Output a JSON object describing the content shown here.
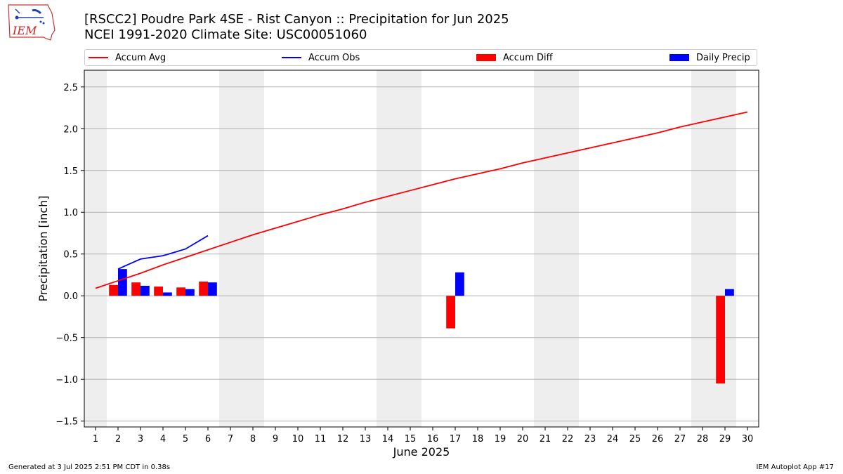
{
  "header": {
    "logo_text": "IEM",
    "title_line1": "[RSCC2] Poudre Park 4SE - Rist Canyon :: Precipitation for Jun 2025",
    "title_line2": "NCEI 1991-2020 Climate Site: USC00051060"
  },
  "footer": {
    "generated": "Generated at 3 Jul 2025 2:51 PM CDT in 0.38s",
    "app": "IEM Autoplot App #17"
  },
  "colors": {
    "accum_avg": "#ff0000",
    "accum_obs": "#0000ff",
    "accum_diff": "#ff0000",
    "daily_precip": "#0000ff",
    "weekend_shade": "#eeeeee",
    "grid": "#b0b0b0"
  },
  "chart_data": {
    "type": "bar",
    "xlabel": "June 2025",
    "ylabel": "Precipitation [inch]",
    "ylim": [
      -1.57,
      2.7
    ],
    "xlim": [
      0.5,
      30.5
    ],
    "grid": "horizontal",
    "legend_placement": "top",
    "x": [
      1,
      2,
      3,
      4,
      5,
      6,
      7,
      8,
      9,
      10,
      11,
      12,
      13,
      14,
      15,
      16,
      17,
      18,
      19,
      20,
      21,
      22,
      23,
      24,
      25,
      26,
      27,
      28,
      29,
      30
    ],
    "yticks": [
      -1.5,
      -1.0,
      -0.5,
      0.0,
      0.5,
      1.0,
      1.5,
      2.0,
      2.5
    ],
    "ytick_labels": [
      "−1.5",
      "−1.0",
      "−0.5",
      "0.0",
      "0.5",
      "1.0",
      "1.5",
      "2.0",
      "2.5"
    ],
    "weekend_days": [
      1,
      7,
      8,
      14,
      15,
      21,
      22,
      28,
      29
    ],
    "series": [
      {
        "name": "Accum Avg",
        "kind": "line",
        "x": [
          1,
          2,
          3,
          4,
          5,
          6,
          7,
          8,
          9,
          10,
          11,
          12,
          13,
          14,
          15,
          16,
          17,
          18,
          19,
          20,
          21,
          22,
          23,
          24,
          25,
          26,
          27,
          28,
          29,
          30
        ],
        "values": [
          0.09,
          0.18,
          0.27,
          0.37,
          0.46,
          0.55,
          0.64,
          0.73,
          0.81,
          0.89,
          0.97,
          1.04,
          1.12,
          1.19,
          1.26,
          1.33,
          1.4,
          1.46,
          1.52,
          1.59,
          1.65,
          1.71,
          1.77,
          1.83,
          1.89,
          1.95,
          2.02,
          2.08,
          2.14,
          2.2
        ]
      },
      {
        "name": "Accum Obs",
        "kind": "line",
        "x": [
          2,
          3,
          4,
          5,
          6
        ],
        "values": [
          0.32,
          0.44,
          0.48,
          0.56,
          0.72
        ]
      },
      {
        "name": "Accum Diff",
        "kind": "bar",
        "x": [
          2,
          3,
          4,
          5,
          6,
          17,
          29
        ],
        "values": [
          0.13,
          0.16,
          0.11,
          0.1,
          0.17,
          -0.39,
          -1.05
        ]
      },
      {
        "name": "Daily Precip",
        "kind": "bar",
        "x": [
          2,
          3,
          4,
          5,
          6,
          17,
          29
        ],
        "values": [
          0.32,
          0.12,
          0.04,
          0.08,
          0.16,
          0.28,
          0.08
        ]
      }
    ]
  }
}
